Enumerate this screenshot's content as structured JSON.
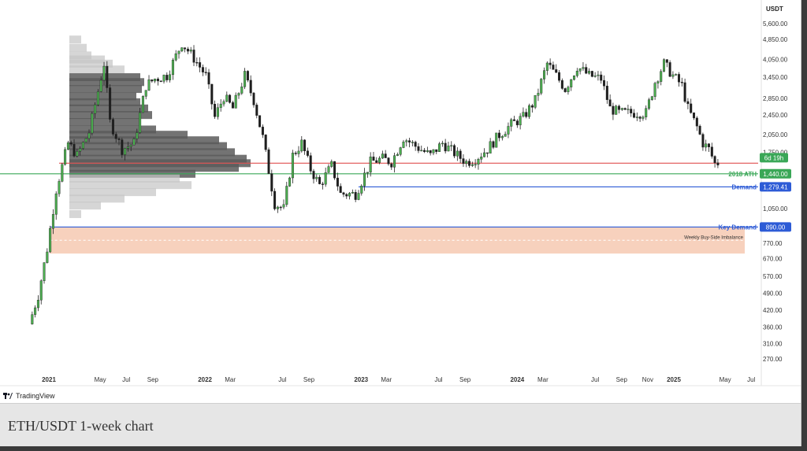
{
  "chart_data": {
    "type": "candlestick",
    "pair_unit": "USDT",
    "timeframe": "1W",
    "scale": "log",
    "y_ticks": [
      5600,
      4850,
      4050,
      3450,
      2850,
      2450,
      2050,
      1750,
      1050,
      770,
      670,
      570,
      490,
      420,
      360,
      310,
      270
    ],
    "y_tick_labels": [
      "5,600.00",
      "4,850.00",
      "4,050.00",
      "3,450.00",
      "2,850.00",
      "2,450.00",
      "2,050.00",
      "1,750.00",
      "1,050.00",
      "770.00",
      "670.00",
      "570.00",
      "490.00",
      "420.00",
      "360.00",
      "310.00",
      "270.00"
    ],
    "x_ticks": [
      {
        "label": "2021",
        "date": "2021-01-01",
        "bold": true
      },
      {
        "label": "May",
        "date": "2021-05-01",
        "bold": false
      },
      {
        "label": "Jul",
        "date": "2021-07-01",
        "bold": false
      },
      {
        "label": "Sep",
        "date": "2021-09-01",
        "bold": false
      },
      {
        "label": "2022",
        "date": "2022-01-01",
        "bold": true
      },
      {
        "label": "Mar",
        "date": "2022-03-01",
        "bold": false
      },
      {
        "label": "Jul",
        "date": "2022-07-01",
        "bold": false
      },
      {
        "label": "Sep",
        "date": "2022-09-01",
        "bold": false
      },
      {
        "label": "2023",
        "date": "2023-01-01",
        "bold": true
      },
      {
        "label": "Mar",
        "date": "2023-03-01",
        "bold": false
      },
      {
        "label": "Jul",
        "date": "2023-07-01",
        "bold": false
      },
      {
        "label": "Sep",
        "date": "2023-09-01",
        "bold": false
      },
      {
        "label": "2024",
        "date": "2024-01-01",
        "bold": true
      },
      {
        "label": "Mar",
        "date": "2024-03-01",
        "bold": false
      },
      {
        "label": "Jul",
        "date": "2024-07-01",
        "bold": false
      },
      {
        "label": "Sep",
        "date": "2024-09-01",
        "bold": false
      },
      {
        "label": "Nov",
        "date": "2024-11-01",
        "bold": false
      },
      {
        "label": "2025",
        "date": "2025-01-01",
        "bold": true
      },
      {
        "label": "May",
        "date": "2025-05-01",
        "bold": false
      },
      {
        "label": "Jul",
        "date": "2025-07-01",
        "bold": false
      }
    ],
    "price_path": [
      [
        "2020-11-16",
        370
      ],
      [
        "2020-12-07",
        480
      ],
      [
        "2020-12-28",
        730
      ],
      [
        "2021-01-18",
        1250
      ],
      [
        "2021-02-15",
        1900
      ],
      [
        "2021-03-08",
        1700
      ],
      [
        "2021-04-05",
        2100
      ],
      [
        "2021-05-10",
        3900
      ],
      [
        "2021-05-24",
        2300
      ],
      [
        "2021-06-21",
        1800
      ],
      [
        "2021-07-19",
        1900
      ],
      [
        "2021-08-16",
        3200
      ],
      [
        "2021-09-06",
        3400
      ],
      [
        "2021-10-04",
        3500
      ],
      [
        "2021-11-08",
        4700
      ],
      [
        "2021-12-06",
        4100
      ],
      [
        "2022-01-03",
        3500
      ],
      [
        "2022-01-24",
        2400
      ],
      [
        "2022-02-14",
        2900
      ],
      [
        "2022-03-07",
        2600
      ],
      [
        "2022-04-04",
        3500
      ],
      [
        "2022-04-25",
        2800
      ],
      [
        "2022-05-16",
        2000
      ],
      [
        "2022-06-13",
        1100
      ],
      [
        "2022-07-04",
        1050
      ],
      [
        "2022-07-25",
        1700
      ],
      [
        "2022-08-15",
        1900
      ],
      [
        "2022-09-05",
        1500
      ],
      [
        "2022-09-26",
        1300
      ],
      [
        "2022-10-24",
        1550
      ],
      [
        "2022-11-14",
        1200
      ],
      [
        "2022-12-19",
        1200
      ],
      [
        "2023-01-23",
        1600
      ],
      [
        "2023-02-20",
        1650
      ],
      [
        "2023-03-13",
        1600
      ],
      [
        "2023-04-10",
        2000
      ],
      [
        "2023-05-08",
        1850
      ],
      [
        "2023-06-12",
        1700
      ],
      [
        "2023-07-10",
        1900
      ],
      [
        "2023-08-14",
        1700
      ],
      [
        "2023-09-04",
        1600
      ],
      [
        "2023-09-25",
        1650
      ],
      [
        "2023-10-23",
        1800
      ],
      [
        "2023-11-20",
        2050
      ],
      [
        "2023-12-18",
        2250
      ],
      [
        "2024-01-15",
        2400
      ],
      [
        "2024-02-12",
        2800
      ],
      [
        "2024-03-11",
        3900
      ],
      [
        "2024-04-01",
        3500
      ],
      [
        "2024-04-22",
        3100
      ],
      [
        "2024-05-20",
        3800
      ],
      [
        "2024-06-17",
        3500
      ],
      [
        "2024-07-15",
        3400
      ],
      [
        "2024-08-05",
        2600
      ],
      [
        "2024-08-26",
        2500
      ],
      [
        "2024-09-16",
        2500
      ],
      [
        "2024-10-07",
        2500
      ],
      [
        "2024-10-28",
        2500
      ],
      [
        "2024-11-18",
        3300
      ],
      [
        "2024-12-09",
        3900
      ],
      [
        "2024-12-30",
        3500
      ],
      [
        "2025-01-20",
        3200
      ],
      [
        "2025-02-03",
        2600
      ],
      [
        "2025-02-24",
        2200
      ],
      [
        "2025-03-10",
        1900
      ],
      [
        "2025-03-24",
        1800
      ],
      [
        "2025-04-07",
        1580
      ],
      [
        "2025-04-14",
        1590
      ]
    ],
    "horizontal_levels": [
      {
        "label": "Key Demand",
        "value_label": "890.00",
        "value": 890,
        "color": "#2d5bd6",
        "start_date": "2021-01-04"
      },
      {
        "label": "Demand",
        "value_label": "1,279.41",
        "value": 1279.41,
        "color": "#2d5bd6",
        "start_date": "2022-12-26"
      },
      {
        "label": "2018 ATH",
        "value_label": "1,440.00",
        "value": 1440,
        "color": "#3aa757",
        "start_date": "2020-11-01"
      },
      {
        "label": "",
        "value_label": "",
        "value": 1585,
        "color": "#e05050",
        "start_date": "2021-01-25"
      }
    ],
    "current_price_badge": {
      "text": "6d 19h",
      "value": 1665,
      "color": "#3aa757"
    },
    "zone": {
      "label": "Weekly Buy-Side Imbalance",
      "top": 890,
      "bottom": 700,
      "start_date": "2021-01-04",
      "color": "#f6c9b2"
    },
    "volume_profile": [
      [
        4850,
        15
      ],
      [
        4500,
        22
      ],
      [
        4200,
        28
      ],
      [
        4050,
        45
      ],
      [
        3900,
        55
      ],
      [
        3700,
        70
      ],
      [
        3450,
        90
      ],
      [
        3300,
        95
      ],
      [
        3100,
        92
      ],
      [
        2900,
        85
      ],
      [
        2750,
        90
      ],
      [
        2600,
        100
      ],
      [
        2450,
        105
      ],
      [
        2300,
        90
      ],
      [
        2150,
        110
      ],
      [
        2050,
        150
      ],
      [
        1950,
        190
      ],
      [
        1850,
        200
      ],
      [
        1750,
        210
      ],
      [
        1650,
        225
      ],
      [
        1585,
        230
      ],
      [
        1520,
        215
      ],
      [
        1440,
        160
      ],
      [
        1380,
        140
      ],
      [
        1300,
        155
      ],
      [
        1220,
        110
      ],
      [
        1150,
        70
      ],
      [
        1080,
        40
      ],
      [
        1000,
        15
      ]
    ]
  },
  "branding": {
    "logo_text": "TradingView"
  },
  "caption": "ETH/USDT 1-week chart"
}
